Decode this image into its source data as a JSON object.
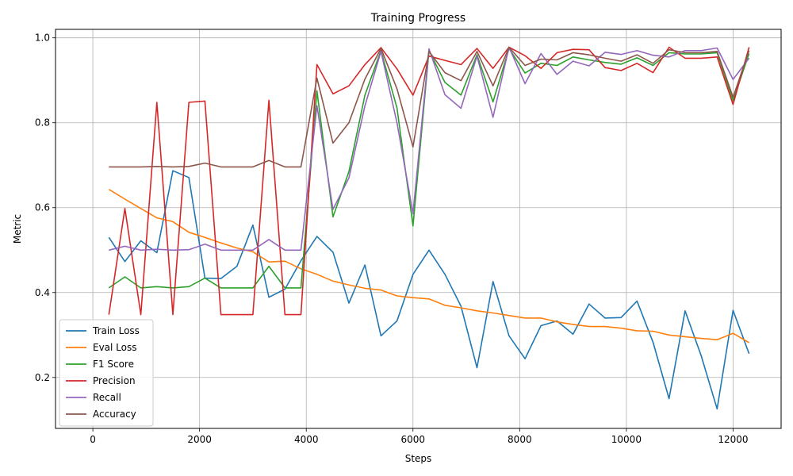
{
  "chart_data": {
    "type": "line",
    "title": "Training Progress",
    "xlabel": "Steps",
    "ylabel": "Metric",
    "xlim": [
      -700,
      12900
    ],
    "ylim": [
      0.08,
      1.02
    ],
    "xticks": [
      0,
      2000,
      4000,
      6000,
      8000,
      10000,
      12000
    ],
    "yticks": [
      0.2,
      0.4,
      0.6,
      0.8,
      1.0
    ],
    "ytick_labels": [
      "0.2",
      "0.4",
      "0.6",
      "0.8",
      "1.0"
    ],
    "grid": true,
    "legend_position": "lower-left",
    "x": [
      300,
      600,
      900,
      1200,
      1500,
      1800,
      2100,
      2400,
      2700,
      3000,
      3300,
      3600,
      3900,
      4200,
      4500,
      4800,
      5100,
      5400,
      5700,
      6000,
      6300,
      6600,
      6900,
      7200,
      7500,
      7800,
      8100,
      8400,
      8700,
      9000,
      9300,
      9600,
      9900,
      10200,
      10500,
      10800,
      11100,
      11400,
      11700,
      12000,
      12300
    ],
    "series": [
      {
        "name": "Train Loss",
        "color": "#1f77b4",
        "values": [
          0.53,
          0.473,
          0.522,
          0.494,
          0.687,
          0.671,
          0.434,
          0.433,
          0.462,
          0.559,
          0.389,
          0.408,
          0.475,
          0.532,
          0.495,
          0.375,
          0.465,
          0.298,
          0.333,
          0.443,
          0.5,
          0.443,
          0.368,
          0.223,
          0.426,
          0.298,
          0.244,
          0.322,
          0.333,
          0.302,
          0.373,
          0.34,
          0.341,
          0.38,
          0.283,
          0.15,
          0.357,
          0.252,
          0.126,
          0.358,
          0.256
        ]
      },
      {
        "name": "Eval Loss",
        "color": "#ff7f0e",
        "values": [
          0.643,
          0.62,
          0.598,
          0.576,
          0.567,
          0.542,
          0.53,
          0.517,
          0.505,
          0.496,
          0.472,
          0.474,
          0.456,
          0.443,
          0.427,
          0.418,
          0.41,
          0.406,
          0.392,
          0.388,
          0.385,
          0.37,
          0.364,
          0.357,
          0.352,
          0.346,
          0.34,
          0.34,
          0.331,
          0.325,
          0.32,
          0.32,
          0.316,
          0.31,
          0.309,
          0.3,
          0.296,
          0.292,
          0.289,
          0.304,
          0.282
        ]
      },
      {
        "name": "F1 Score",
        "color": "#2ca02c",
        "values": [
          0.411,
          0.437,
          0.411,
          0.414,
          0.411,
          0.414,
          0.434,
          0.411,
          0.411,
          0.411,
          0.462,
          0.411,
          0.411,
          0.875,
          0.578,
          0.685,
          0.865,
          0.97,
          0.835,
          0.557,
          0.97,
          0.895,
          0.865,
          0.96,
          0.849,
          0.975,
          0.917,
          0.94,
          0.935,
          0.955,
          0.948,
          0.942,
          0.938,
          0.953,
          0.935,
          0.965,
          0.962,
          0.962,
          0.965,
          0.852,
          0.963
        ]
      },
      {
        "name": "Precision",
        "color": "#d62728",
        "values": [
          0.348,
          0.598,
          0.348,
          0.848,
          0.348,
          0.848,
          0.851,
          0.348,
          0.348,
          0.348,
          0.853,
          0.348,
          0.348,
          0.937,
          0.868,
          0.887,
          0.937,
          0.977,
          0.927,
          0.865,
          0.957,
          0.947,
          0.937,
          0.975,
          0.928,
          0.978,
          0.958,
          0.928,
          0.965,
          0.973,
          0.972,
          0.93,
          0.923,
          0.94,
          0.918,
          0.978,
          0.952,
          0.952,
          0.955,
          0.843,
          0.978
        ]
      },
      {
        "name": "Recall",
        "color": "#9467bd",
        "values": [
          0.5,
          0.509,
          0.5,
          0.502,
          0.5,
          0.501,
          0.514,
          0.5,
          0.5,
          0.5,
          0.525,
          0.5,
          0.5,
          0.84,
          0.596,
          0.67,
          0.84,
          0.968,
          0.8,
          0.586,
          0.974,
          0.866,
          0.834,
          0.957,
          0.813,
          0.978,
          0.892,
          0.963,
          0.914,
          0.945,
          0.934,
          0.966,
          0.961,
          0.97,
          0.959,
          0.955,
          0.97,
          0.97,
          0.976,
          0.902,
          0.952
        ]
      },
      {
        "name": "Accuracy",
        "color": "#8c564b",
        "values": [
          0.696,
          0.696,
          0.696,
          0.697,
          0.696,
          0.697,
          0.705,
          0.696,
          0.696,
          0.696,
          0.711,
          0.696,
          0.696,
          0.905,
          0.752,
          0.8,
          0.903,
          0.975,
          0.88,
          0.743,
          0.968,
          0.918,
          0.899,
          0.968,
          0.887,
          0.978,
          0.935,
          0.95,
          0.948,
          0.965,
          0.96,
          0.952,
          0.945,
          0.96,
          0.94,
          0.972,
          0.965,
          0.965,
          0.968,
          0.86,
          0.97
        ]
      }
    ]
  }
}
